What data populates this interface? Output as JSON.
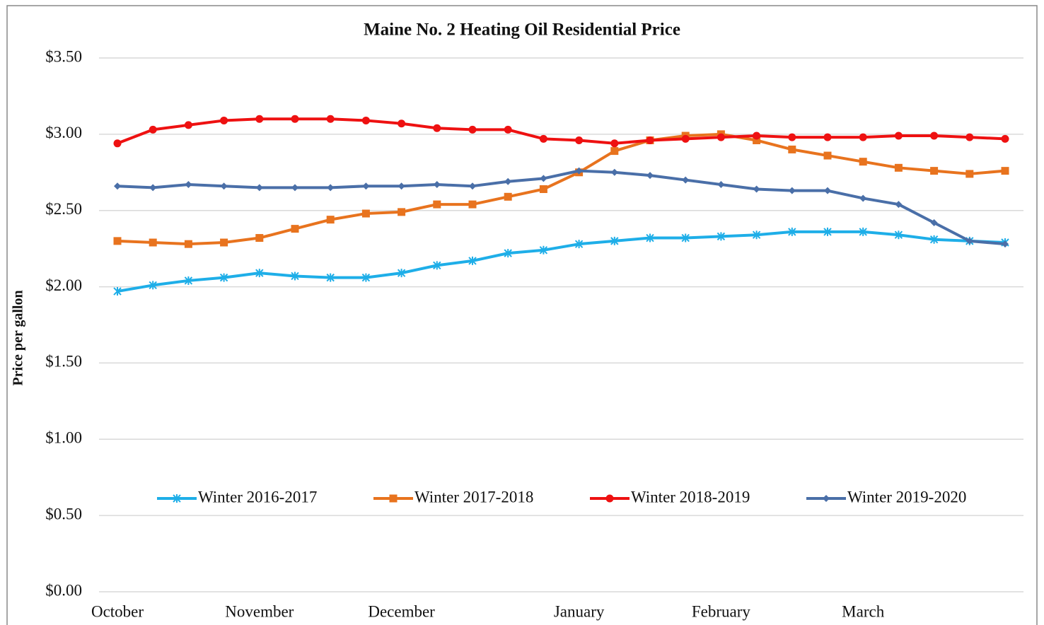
{
  "chart_data": {
    "type": "line",
    "title": "Maine No. 2 Heating Oil Residential Price",
    "y_label": "Price per gallon",
    "categories": [
      "October",
      null,
      null,
      null,
      "November",
      null,
      null,
      null,
      "December",
      null,
      null,
      null,
      null,
      "January",
      null,
      null,
      null,
      "February",
      null,
      null,
      null,
      "March",
      null,
      null,
      null,
      null
    ],
    "ylim": [
      0,
      3.5
    ],
    "yticks": [
      {
        "value": 0,
        "label": "$0.00"
      },
      {
        "value": 0.5,
        "label": "$0.50"
      },
      {
        "value": 1,
        "label": "$1.00"
      },
      {
        "value": 1.5,
        "label": "$1.50"
      },
      {
        "value": 2,
        "label": "$2.00"
      },
      {
        "value": 2.5,
        "label": "$2.50"
      },
      {
        "value": 3,
        "label": "$3.00"
      },
      {
        "value": 3.5,
        "label": "$3.50"
      }
    ],
    "grid": true,
    "legend": "bottom",
    "series": [
      {
        "name": "Winter 2016-2017",
        "color": "#1eaee8",
        "marker": "asterisk",
        "values": [
          1.97,
          2.01,
          2.04,
          2.06,
          2.09,
          2.07,
          2.06,
          2.06,
          2.09,
          2.14,
          2.17,
          2.22,
          2.24,
          2.28,
          2.3,
          2.32,
          2.32,
          2.33,
          2.34,
          2.36,
          2.36,
          2.36,
          2.34,
          2.31,
          2.3,
          2.29
        ]
      },
      {
        "name": "Winter 2017-2018",
        "color": "#e8731e",
        "marker": "square",
        "values": [
          2.3,
          2.29,
          2.28,
          2.29,
          2.32,
          2.38,
          2.44,
          2.48,
          2.49,
          2.54,
          2.54,
          2.59,
          2.64,
          2.75,
          2.89,
          2.96,
          2.99,
          3.0,
          2.96,
          2.9,
          2.86,
          2.82,
          2.78,
          2.76,
          2.74,
          2.76
        ]
      },
      {
        "name": "Winter 2018-2019",
        "color": "#ee1111",
        "marker": "circle",
        "values": [
          2.94,
          3.03,
          3.06,
          3.09,
          3.1,
          3.1,
          3.1,
          3.09,
          3.07,
          3.04,
          3.03,
          3.03,
          2.97,
          2.96,
          2.94,
          2.96,
          2.97,
          2.98,
          2.99,
          2.98,
          2.98,
          2.98,
          2.99,
          2.99,
          2.98,
          2.97
        ]
      },
      {
        "name": "Winter 2019-2020",
        "color": "#4a6fa8",
        "marker": "diamond",
        "values": [
          2.66,
          2.65,
          2.67,
          2.66,
          2.65,
          2.65,
          2.65,
          2.66,
          2.66,
          2.67,
          2.66,
          2.69,
          2.71,
          2.76,
          2.75,
          2.73,
          2.7,
          2.67,
          2.64,
          2.63,
          2.63,
          2.58,
          2.54,
          2.42,
          2.3,
          2.28
        ]
      }
    ]
  }
}
